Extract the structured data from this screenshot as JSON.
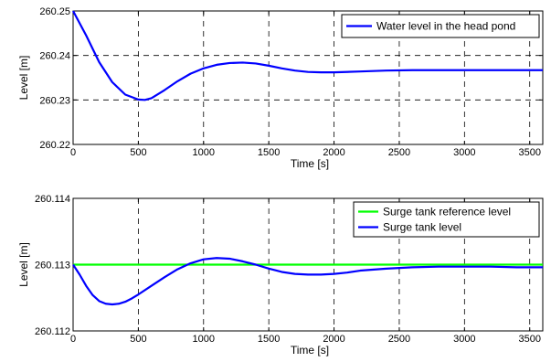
{
  "chart_data": [
    {
      "type": "line",
      "xlabel": "Time [s]",
      "ylabel": "Level [m]",
      "xlim": [
        0,
        3600
      ],
      "ylim": [
        260.22,
        260.25
      ],
      "xticks": [
        "0",
        "500",
        "1000",
        "1500",
        "2000",
        "2500",
        "3000",
        "3500"
      ],
      "yticks": [
        "260.22",
        "260.23",
        "260.24",
        "260.25"
      ],
      "grid": true,
      "legend": "top-right",
      "series": [
        {
          "name": "Water level in the head pond",
          "color": "#0000ff",
          "x": [
            0,
            100,
            200,
            300,
            400,
            500,
            550,
            600,
            700,
            800,
            900,
            1000,
            1100,
            1200,
            1300,
            1400,
            1500,
            1600,
            1700,
            1800,
            1900,
            2000,
            2200,
            2400,
            2600,
            2800,
            3000,
            3200,
            3400,
            3600
          ],
          "y": [
            260.25,
            260.2445,
            260.2385,
            260.234,
            260.2312,
            260.2301,
            260.23,
            260.2304,
            260.2322,
            260.2342,
            260.2359,
            260.2371,
            260.2379,
            260.2383,
            260.2384,
            260.2382,
            260.2377,
            260.2371,
            260.2366,
            260.2363,
            260.2362,
            260.2362,
            260.2364,
            260.2366,
            260.2367,
            260.2367,
            260.2367,
            260.2367,
            260.2367,
            260.2367
          ]
        }
      ]
    },
    {
      "type": "line",
      "xlabel": "Time [s]",
      "ylabel": "Level [m]",
      "xlim": [
        0,
        3600
      ],
      "ylim": [
        260.112,
        260.114
      ],
      "xticks": [
        "0",
        "500",
        "1000",
        "1500",
        "2000",
        "2500",
        "3000",
        "3500"
      ],
      "yticks": [
        "260.112",
        "260.113",
        "260.114"
      ],
      "grid": true,
      "legend": "top-right",
      "series": [
        {
          "name": "Surge tank reference level",
          "color": "#00ff00",
          "x": [
            0,
            3600
          ],
          "y": [
            260.113,
            260.113
          ]
        },
        {
          "name": "Surge tank level",
          "color": "#0000ff",
          "x": [
            0,
            50,
            100,
            150,
            200,
            250,
            300,
            350,
            400,
            450,
            500,
            600,
            700,
            800,
            900,
            1000,
            1100,
            1200,
            1300,
            1400,
            1500,
            1600,
            1700,
            1800,
            1900,
            2000,
            2100,
            2200,
            2400,
            2600,
            2800,
            3000,
            3200,
            3400,
            3600
          ],
          "y": [
            260.113,
            260.11285,
            260.11268,
            260.11254,
            260.11245,
            260.11241,
            260.1124,
            260.11241,
            260.11244,
            260.11249,
            260.11255,
            260.11268,
            260.11281,
            260.11293,
            260.11302,
            260.11308,
            260.1131,
            260.11309,
            260.11305,
            260.113,
            260.11294,
            260.11289,
            260.11286,
            260.11285,
            260.11285,
            260.11286,
            260.11288,
            260.11291,
            260.11294,
            260.11296,
            260.11297,
            260.11297,
            260.11297,
            260.11296,
            260.11296
          ]
        }
      ]
    }
  ]
}
